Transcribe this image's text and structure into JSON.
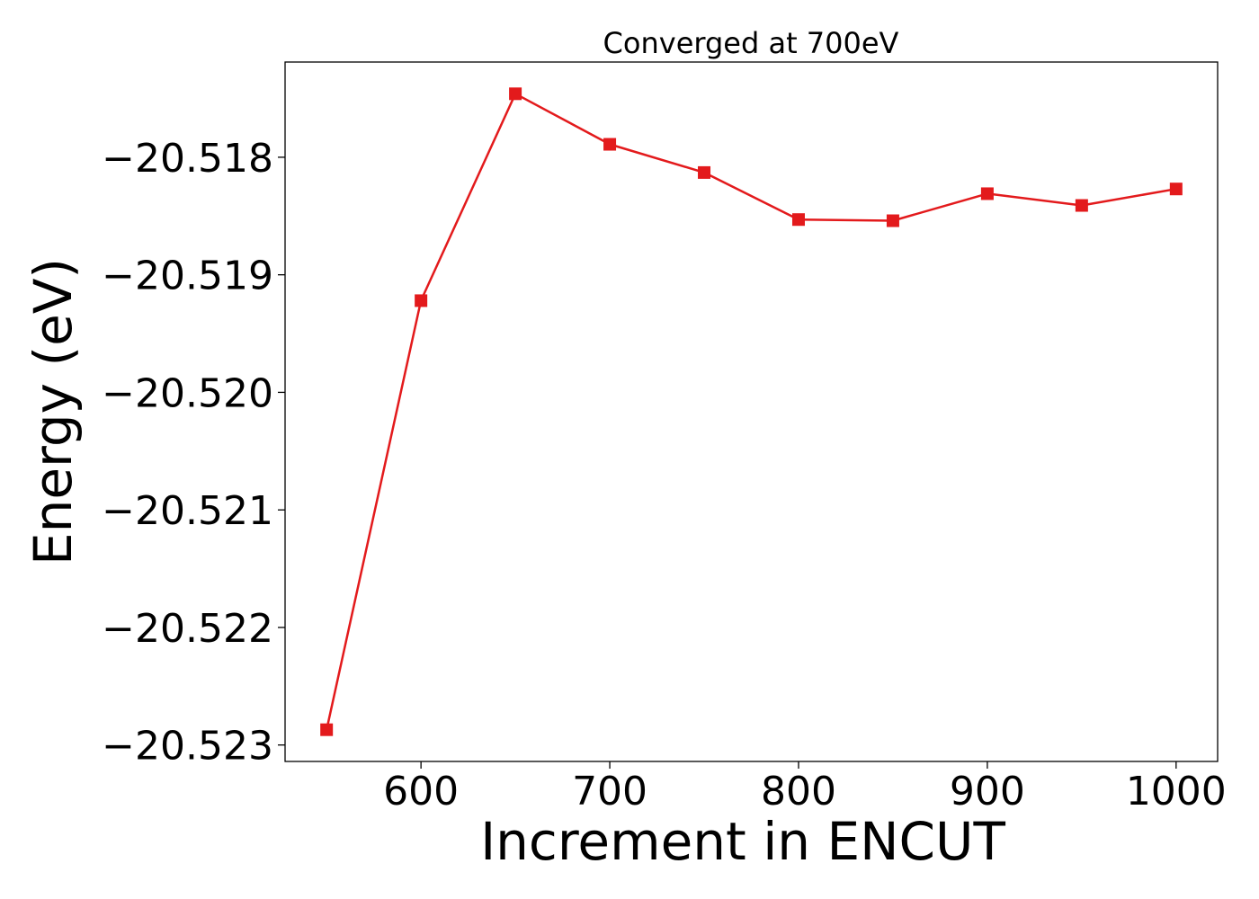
{
  "chart_data": {
    "type": "line",
    "title": "Converged at 700eV",
    "xlabel": "Increment in ENCUT",
    "ylabel": "Energy (eV)",
    "x": [
      550,
      600,
      650,
      700,
      750,
      800,
      850,
      900,
      950,
      1000
    ],
    "series": [
      {
        "values": [
          -20.52287,
          -20.51922,
          -20.51746,
          -20.51789,
          -20.51813,
          -20.51853,
          -20.51854,
          -20.51831,
          -20.51841,
          -20.51827
        ],
        "color": "#e31a1c",
        "marker": "square"
      }
    ],
    "xlim": [
      528,
      1022
    ],
    "ylim": [
      -20.52314,
      -20.51719
    ],
    "xticks": [
      600,
      700,
      800,
      900,
      1000
    ],
    "xtick_labels": [
      "600",
      "700",
      "800",
      "900",
      "1000"
    ],
    "yticks": [
      -20.518,
      -20.519,
      -20.52,
      -20.521,
      -20.522,
      -20.523
    ],
    "ytick_labels": [
      "−20.518",
      "−20.519",
      "−20.520",
      "−20.521",
      "−20.522",
      "−20.523"
    ],
    "grid": false,
    "legend": "none"
  }
}
